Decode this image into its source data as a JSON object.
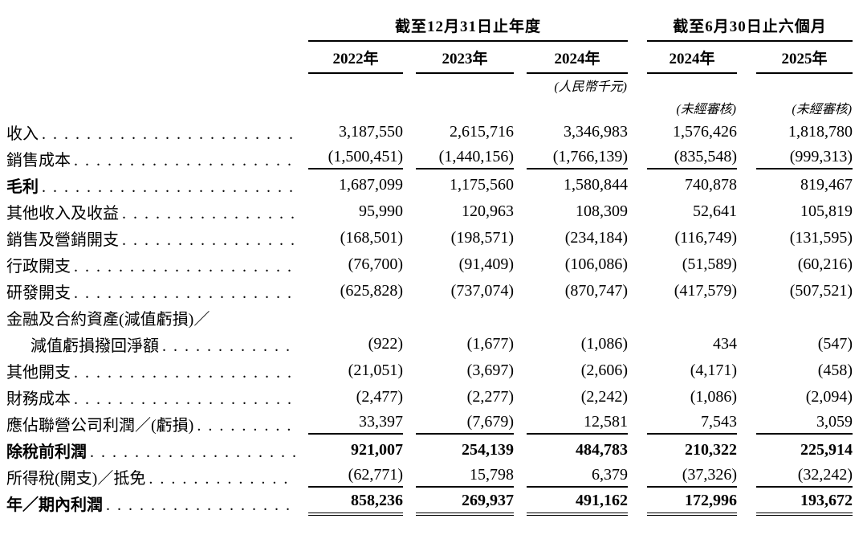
{
  "page": {
    "background": "#ffffff",
    "text_color": "#000000"
  },
  "table": {
    "group_headers": [
      {
        "label": "截至12月31日止年度",
        "span": 3
      },
      {
        "label": "截至6月30日止六個月",
        "span": 2
      }
    ],
    "year_headers": [
      "2022年",
      "2023年",
      "2024年",
      "2024年",
      "2025年"
    ],
    "unit_note": "(人民幣千元)",
    "unaudited_note": "(未經審核)",
    "rows": [
      {
        "label": "收入",
        "leader": true,
        "indent": false,
        "bold_label": false,
        "bold_values": false,
        "rule": null,
        "values": [
          "3,187,550",
          "2,615,716",
          "3,346,983",
          "1,576,426",
          "1,818,780"
        ]
      },
      {
        "label": "銷售成本",
        "leader": true,
        "indent": false,
        "bold_label": false,
        "bold_values": false,
        "rule": "single",
        "values": [
          "(1,500,451)",
          "(1,440,156)",
          "(1,766,139)",
          "(835,548)",
          "(999,313)"
        ]
      },
      {
        "label": "毛利",
        "leader": true,
        "indent": false,
        "bold_label": true,
        "bold_values": false,
        "rule": null,
        "values": [
          "1,687,099",
          "1,175,560",
          "1,580,844",
          "740,878",
          "819,467"
        ]
      },
      {
        "label": "其他收入及收益",
        "leader": true,
        "indent": false,
        "bold_label": false,
        "bold_values": false,
        "rule": null,
        "values": [
          "95,990",
          "120,963",
          "108,309",
          "52,641",
          "105,819"
        ]
      },
      {
        "label": "銷售及營銷開支",
        "leader": true,
        "indent": false,
        "bold_label": false,
        "bold_values": false,
        "rule": null,
        "values": [
          "(168,501)",
          "(198,571)",
          "(234,184)",
          "(116,749)",
          "(131,595)"
        ]
      },
      {
        "label": "行政開支",
        "leader": true,
        "indent": false,
        "bold_label": false,
        "bold_values": false,
        "rule": null,
        "values": [
          "(76,700)",
          "(91,409)",
          "(106,086)",
          "(51,589)",
          "(60,216)"
        ]
      },
      {
        "label": "研發開支",
        "leader": true,
        "indent": false,
        "bold_label": false,
        "bold_values": false,
        "rule": null,
        "values": [
          "(625,828)",
          "(737,074)",
          "(870,747)",
          "(417,579)",
          "(507,521)"
        ]
      },
      {
        "label": "金融及合約資產(減值虧損)／",
        "leader": false,
        "indent": false,
        "bold_label": false,
        "bold_values": false,
        "rule": null,
        "values": null
      },
      {
        "label": "減值虧損撥回淨額",
        "leader": true,
        "indent": true,
        "bold_label": false,
        "bold_values": false,
        "rule": null,
        "values": [
          "(922)",
          "(1,677)",
          "(1,086)",
          "434",
          "(547)"
        ]
      },
      {
        "label": "其他開支",
        "leader": true,
        "indent": false,
        "bold_label": false,
        "bold_values": false,
        "rule": null,
        "values": [
          "(21,051)",
          "(3,697)",
          "(2,606)",
          "(4,171)",
          "(458)"
        ]
      },
      {
        "label": "財務成本",
        "leader": true,
        "indent": false,
        "bold_label": false,
        "bold_values": false,
        "rule": null,
        "values": [
          "(2,477)",
          "(2,277)",
          "(2,242)",
          "(1,086)",
          "(2,094)"
        ]
      },
      {
        "label": "應佔聯營公司利潤／(虧損)",
        "leader": true,
        "indent": false,
        "bold_label": false,
        "bold_values": false,
        "rule": "single",
        "values": [
          "33,397",
          "(7,679)",
          "12,581",
          "7,543",
          "3,059"
        ]
      },
      {
        "label": "除稅前利潤",
        "leader": true,
        "indent": false,
        "bold_label": true,
        "bold_values": true,
        "rule": null,
        "values": [
          "921,007",
          "254,139",
          "484,783",
          "210,322",
          "225,914"
        ]
      },
      {
        "label": "所得稅(開支)／抵免",
        "leader": true,
        "indent": false,
        "bold_label": false,
        "bold_values": false,
        "rule": "single",
        "values": [
          "(62,771)",
          "15,798",
          "6,379",
          "(37,326)",
          "(32,242)"
        ]
      },
      {
        "label": "年／期內利潤",
        "leader": true,
        "indent": false,
        "bold_label": true,
        "bold_values": true,
        "rule": "double",
        "values": [
          "858,236",
          "269,937",
          "491,162",
          "172,996",
          "193,672"
        ]
      }
    ]
  }
}
